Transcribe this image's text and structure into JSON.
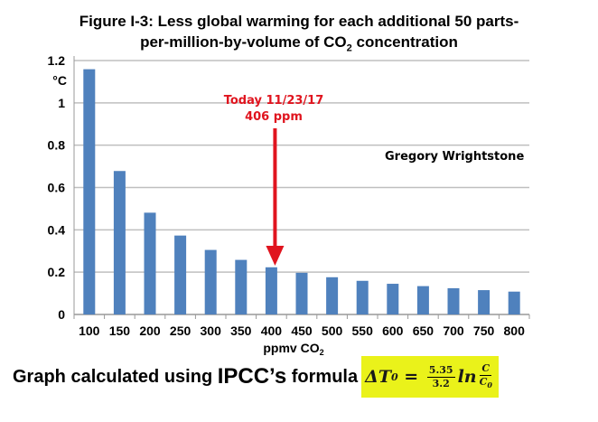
{
  "chart_data": {
    "type": "bar",
    "title_line1": "Figure I-3:  Less global warming for each additional 50 parts-",
    "title_line2_pre": "per-million-by-volume of CO",
    "title_line2_sub": "2",
    "title_line2_post": " concentration",
    "categories": [
      "100",
      "150",
      "200",
      "250",
      "300",
      "350",
      "400",
      "450",
      "500",
      "550",
      "600",
      "650",
      "700",
      "750",
      "800"
    ],
    "values": [
      1.159,
      0.678,
      0.481,
      0.373,
      0.305,
      0.258,
      0.223,
      0.197,
      0.176,
      0.159,
      0.145,
      0.134,
      0.124,
      0.115,
      0.108
    ],
    "ylim": [
      0,
      1.2
    ],
    "yticks": [
      "0",
      "0.2",
      "0.4",
      "0.6",
      "0.8",
      "1",
      "1.2"
    ],
    "ylabel": "°C",
    "xlabel_pre": "ppmv CO",
    "xlabel_sub": "2",
    "grid": true,
    "bar_color": "#4f81bd",
    "annotation": {
      "line1": "Today 11/23/17",
      "line2": "406 ppm",
      "x_value": 406,
      "color": "#e0141e"
    },
    "credit": "Gregory Wrightstone"
  },
  "footer": {
    "text_pre": "Graph calculated using ",
    "text_big": "IPCC’s",
    "text_post": " formula",
    "formula": {
      "lhs": "ΔT",
      "lhs_sub": "0",
      "eq": " = ",
      "num": "5.35",
      "den": "3.2",
      "ln": "ln",
      "c": "C",
      "c0": "C",
      "c0_sub": "0"
    }
  }
}
